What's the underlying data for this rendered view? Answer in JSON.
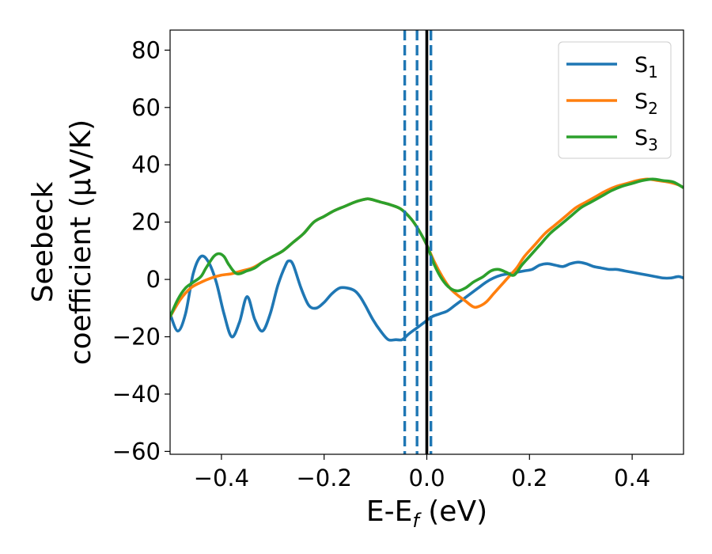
{
  "chart_data": {
    "type": "line",
    "xlabel": "E-E",
    "xlabel_sub": "f",
    "xlabel_suffix": " (eV)",
    "ylabel_line1": "Seebeck",
    "ylabel_line2": "coefficient  (μV/K)",
    "xlim": [
      -0.5,
      0.5
    ],
    "ylim": [
      -61,
      87
    ],
    "xticks": [
      -0.4,
      -0.2,
      0.0,
      0.2,
      0.4
    ],
    "xtick_labels": [
      "−0.4",
      "−0.2",
      "0.0",
      "0.2",
      "0.4"
    ],
    "yticks": [
      -60,
      -40,
      -20,
      0,
      20,
      40,
      60,
      80
    ],
    "ytick_labels": [
      "−60",
      "−40",
      "−20",
      "0",
      "20",
      "40",
      "60",
      "80"
    ],
    "grid": false,
    "legend_position": "top-right",
    "vlines": [
      {
        "x": -0.043,
        "style": "dashed",
        "color": "#1f77b4"
      },
      {
        "x": -0.019,
        "style": "dashed",
        "color": "#1f77b4"
      },
      {
        "x": 0.0,
        "style": "solid",
        "color": "#000000"
      },
      {
        "x": 0.008,
        "style": "dashed",
        "color": "#1f77b4"
      }
    ],
    "series": [
      {
        "name": "S",
        "sub": "1",
        "color": "#1f77b4",
        "x": [
          -0.5,
          -0.485,
          -0.47,
          -0.455,
          -0.44,
          -0.425,
          -0.41,
          -0.395,
          -0.38,
          -0.365,
          -0.35,
          -0.335,
          -0.32,
          -0.305,
          -0.29,
          -0.275,
          -0.268,
          -0.26,
          -0.245,
          -0.23,
          -0.215,
          -0.2,
          -0.185,
          -0.17,
          -0.155,
          -0.14,
          -0.13,
          -0.12,
          -0.105,
          -0.09,
          -0.075,
          -0.06,
          -0.048,
          -0.035,
          -0.02,
          -0.005,
          0.01,
          0.025,
          0.04,
          0.055,
          0.07,
          0.085,
          0.1,
          0.115,
          0.13,
          0.145,
          0.16,
          0.175,
          0.19,
          0.205,
          0.22,
          0.235,
          0.25,
          0.265,
          0.28,
          0.295,
          0.31,
          0.325,
          0.34,
          0.355,
          0.37,
          0.385,
          0.4,
          0.415,
          0.43,
          0.445,
          0.46,
          0.475,
          0.49,
          0.5
        ],
        "y": [
          -12,
          -18,
          -12,
          2,
          8,
          6,
          -1,
          -12,
          -20,
          -15,
          -6,
          -14,
          -18,
          -12,
          -2,
          5,
          6.5,
          5,
          -3,
          -9,
          -10,
          -8,
          -5,
          -3,
          -3,
          -4,
          -6,
          -9,
          -14,
          -18,
          -21,
          -21,
          -21,
          -19,
          -17,
          -15,
          -13,
          -12,
          -11,
          -9,
          -7,
          -5,
          -3,
          -1,
          0.5,
          1.5,
          2,
          2.5,
          3,
          3.5,
          5,
          5.5,
          5,
          4.5,
          5.5,
          6,
          5.5,
          4.5,
          4,
          3.5,
          3.5,
          3,
          2.5,
          2,
          1.5,
          1,
          0.5,
          0.5,
          1,
          0.5
        ]
      },
      {
        "name": "S",
        "sub": "2",
        "color": "#ff7f0e",
        "x": [
          -0.5,
          -0.48,
          -0.46,
          -0.44,
          -0.42,
          -0.4,
          -0.38,
          -0.36,
          -0.34,
          -0.32,
          -0.3,
          -0.28,
          -0.26,
          -0.24,
          -0.22,
          -0.2,
          -0.18,
          -0.16,
          -0.14,
          -0.12,
          -0.11,
          -0.09,
          -0.07,
          -0.05,
          -0.03,
          -0.015,
          0.0,
          0.015,
          0.03,
          0.045,
          0.06,
          0.075,
          0.09,
          0.1,
          0.115,
          0.13,
          0.145,
          0.16,
          0.175,
          0.19,
          0.21,
          0.23,
          0.25,
          0.27,
          0.29,
          0.31,
          0.33,
          0.35,
          0.37,
          0.39,
          0.41,
          0.43,
          0.45,
          0.47,
          0.49,
          0.5
        ],
        "y": [
          -13,
          -7,
          -3,
          -1,
          0.5,
          1.5,
          2,
          3,
          4,
          6,
          8,
          10,
          13,
          16,
          20,
          22,
          24,
          25.5,
          27,
          28,
          28,
          27,
          26,
          24.5,
          21,
          17,
          12,
          6,
          1,
          -3,
          -5.5,
          -7.5,
          -9.5,
          -9.5,
          -8,
          -5,
          -2,
          1,
          4,
          8,
          12,
          16,
          19,
          22,
          25,
          27,
          29,
          31,
          32.5,
          33.5,
          34.5,
          35,
          34.5,
          34,
          33,
          32
        ]
      },
      {
        "name": "S",
        "sub": "3",
        "color": "#2ca02c",
        "x": [
          -0.5,
          -0.485,
          -0.47,
          -0.455,
          -0.44,
          -0.43,
          -0.415,
          -0.405,
          -0.395,
          -0.385,
          -0.37,
          -0.35,
          -0.335,
          -0.32,
          -0.3,
          -0.28,
          -0.26,
          -0.24,
          -0.22,
          -0.2,
          -0.18,
          -0.16,
          -0.14,
          -0.12,
          -0.11,
          -0.09,
          -0.07,
          -0.05,
          -0.03,
          -0.015,
          0.0,
          0.015,
          0.03,
          0.045,
          0.06,
          0.075,
          0.09,
          0.1,
          0.11,
          0.125,
          0.14,
          0.155,
          0.17,
          0.185,
          0.2,
          0.22,
          0.24,
          0.26,
          0.28,
          0.3,
          0.32,
          0.34,
          0.36,
          0.38,
          0.4,
          0.42,
          0.44,
          0.46,
          0.48,
          0.5
        ],
        "y": [
          -13,
          -7,
          -3,
          -1,
          1,
          4,
          8,
          9,
          8,
          5,
          2,
          3,
          4,
          6,
          8,
          10,
          13,
          16,
          20,
          22,
          24,
          25.5,
          27,
          28,
          28,
          27,
          26,
          24.5,
          21,
          17,
          12,
          5,
          0,
          -3,
          -4,
          -3,
          -1,
          0,
          1,
          3,
          3.5,
          2.5,
          1.5,
          5,
          8,
          12,
          16,
          19,
          22,
          25,
          27,
          29,
          31,
          32.5,
          33.5,
          34.5,
          35,
          34.5,
          34,
          32
        ]
      }
    ]
  }
}
